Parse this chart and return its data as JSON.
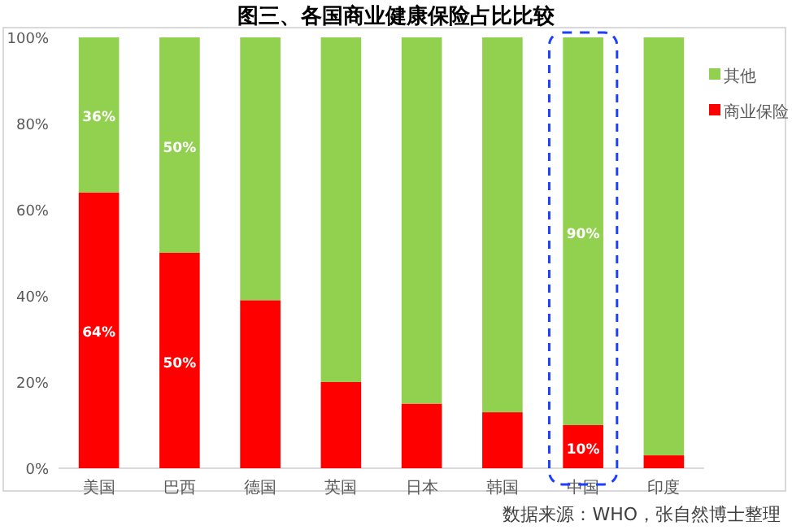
{
  "chart_data": {
    "type": "bar",
    "stacked": true,
    "title": "图三、各国商业健康保险占比比较",
    "categories": [
      "美国",
      "巴西",
      "德国",
      "英国",
      "日本",
      "韩国",
      "中国",
      "印度"
    ],
    "series": [
      {
        "name": "商业保险",
        "color": "#ff0000",
        "values": [
          64,
          50,
          39,
          20,
          15,
          13,
          10,
          3
        ],
        "value_labels": [
          "64%",
          "50%",
          null,
          null,
          null,
          null,
          "10%",
          null
        ]
      },
      {
        "name": "其他",
        "color": "#92d050",
        "values": [
          36,
          50,
          61,
          80,
          85,
          87,
          90,
          97
        ],
        "value_labels": [
          "36%",
          "50%",
          null,
          null,
          null,
          null,
          "90%",
          null
        ]
      }
    ],
    "ylim": [
      0,
      100
    ],
    "yticks": [
      {
        "value": 0,
        "label": "0%"
      },
      {
        "value": 20,
        "label": "20%"
      },
      {
        "value": 40,
        "label": "40%"
      },
      {
        "value": 60,
        "label": "60%"
      },
      {
        "value": 80,
        "label": "80%"
      },
      {
        "value": 100,
        "label": "100%"
      }
    ],
    "legend": "top right",
    "annotations": [
      "数据来源：WHO，张自然博士整理"
    ]
  }
}
